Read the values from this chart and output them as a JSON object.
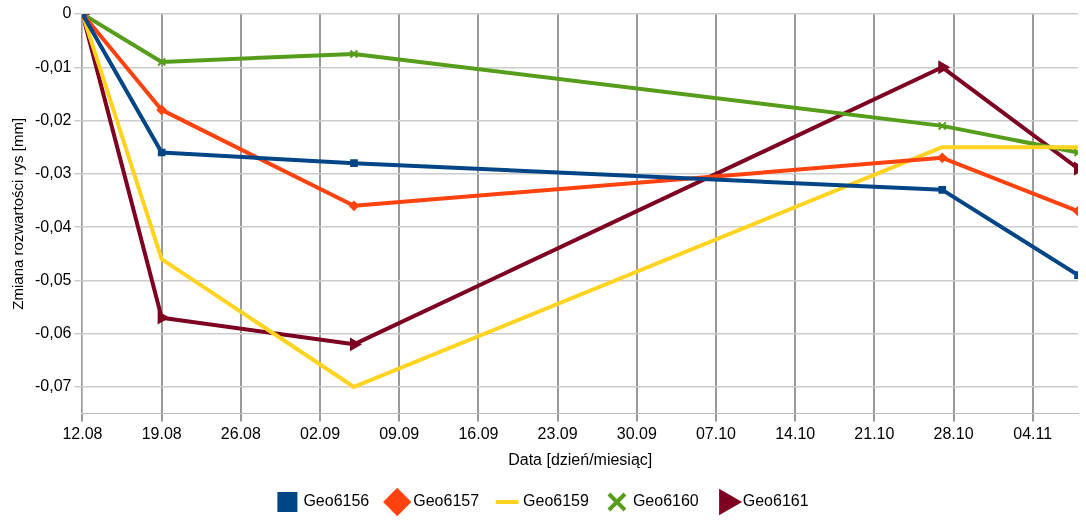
{
  "chart_data": {
    "type": "line",
    "xlabel": "Data [dzień/miesiąc]",
    "ylabel": "Zmiana rozwartości rys [mm]",
    "x": [
      "--08-12",
      "--08-19",
      "--09-05",
      "--10-27",
      "--11-08"
    ],
    "xlim": [
      "--08-12",
      "--11-08"
    ],
    "xticks": [
      {
        "value": "--08-12",
        "label": "12.08"
      },
      {
        "value": "--08-19",
        "label": "19.08"
      },
      {
        "value": "--08-26",
        "label": "26.08"
      },
      {
        "value": "--09-02",
        "label": "02.09"
      },
      {
        "value": "--09-09",
        "label": "09.09"
      },
      {
        "value": "--09-16",
        "label": "16.09"
      },
      {
        "value": "--09-23",
        "label": "23.09"
      },
      {
        "value": "--09-30",
        "label": "30.09"
      },
      {
        "value": "--10-07",
        "label": "07.10"
      },
      {
        "value": "--10-14",
        "label": "14.10"
      },
      {
        "value": "--10-21",
        "label": "21.10"
      },
      {
        "value": "--10-28",
        "label": "28.10"
      },
      {
        "value": "--11-04",
        "label": "04.11"
      }
    ],
    "ylim": [
      -0.075,
      0
    ],
    "yticks": [
      {
        "value": 0,
        "label": "0"
      },
      {
        "value": -0.01,
        "label": "-0,01"
      },
      {
        "value": -0.02,
        "label": "-0,02"
      },
      {
        "value": -0.03,
        "label": "-0,03"
      },
      {
        "value": -0.04,
        "label": "-0,04"
      },
      {
        "value": -0.05,
        "label": "-0,05"
      },
      {
        "value": -0.06,
        "label": "-0,06"
      },
      {
        "value": -0.07,
        "label": "-0,07"
      }
    ],
    "grid": true,
    "legend": "bottom",
    "series": [
      {
        "name": "Geo6156",
        "color": "#004586",
        "marker": "square",
        "values": [
          0,
          -0.026,
          -0.028,
          -0.033,
          -0.049
        ]
      },
      {
        "name": "Geo6157",
        "color": "#ff420e",
        "marker": "diamond",
        "values": [
          0,
          -0.018,
          -0.036,
          -0.027,
          -0.037
        ]
      },
      {
        "name": "Geo6159",
        "color": "#ffd320",
        "marker": "none",
        "values": [
          0,
          -0.046,
          -0.07,
          -0.025,
          -0.025
        ]
      },
      {
        "name": "Geo6160",
        "color": "#579d1c",
        "marker": "cross",
        "values": [
          0,
          -0.009,
          -0.0075,
          -0.021,
          -0.026
        ]
      },
      {
        "name": "Geo6161",
        "color": "#7e0021",
        "marker": "triangle",
        "values": [
          0,
          -0.057,
          -0.062,
          -0.01,
          -0.029
        ]
      }
    ]
  }
}
